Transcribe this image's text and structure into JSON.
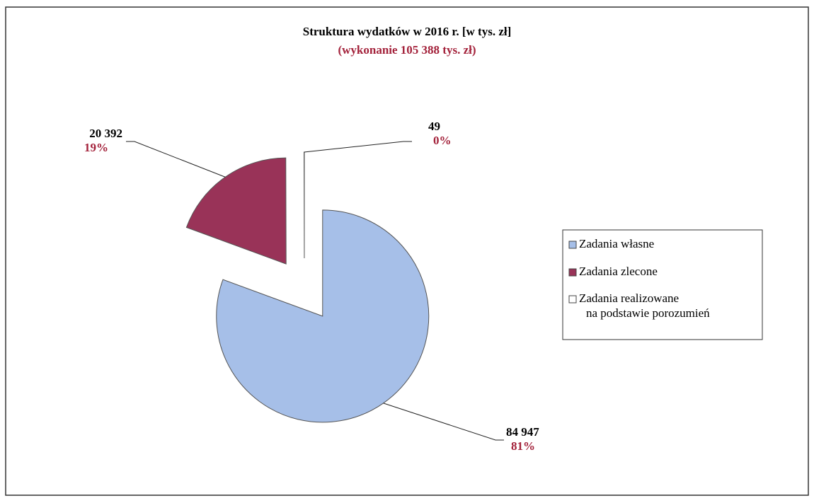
{
  "chart_data": {
    "type": "pie",
    "title": "Struktura wydatków w 2016 r. [w tys. zł]",
    "subtitle": "(wykonanie 105 388 tys. zł)",
    "categories": [
      "Zadania własne",
      "Zadania zlecone",
      "Zadania realizowane na podstawie porozumień"
    ],
    "values": [
      84947,
      20392,
      49
    ],
    "value_labels": [
      "84 947",
      "20 392",
      "49"
    ],
    "percent_labels": [
      "81%",
      "19%",
      "0%"
    ],
    "colors": [
      "#a6bfe8",
      "#993358",
      "#ffffff"
    ]
  }
}
